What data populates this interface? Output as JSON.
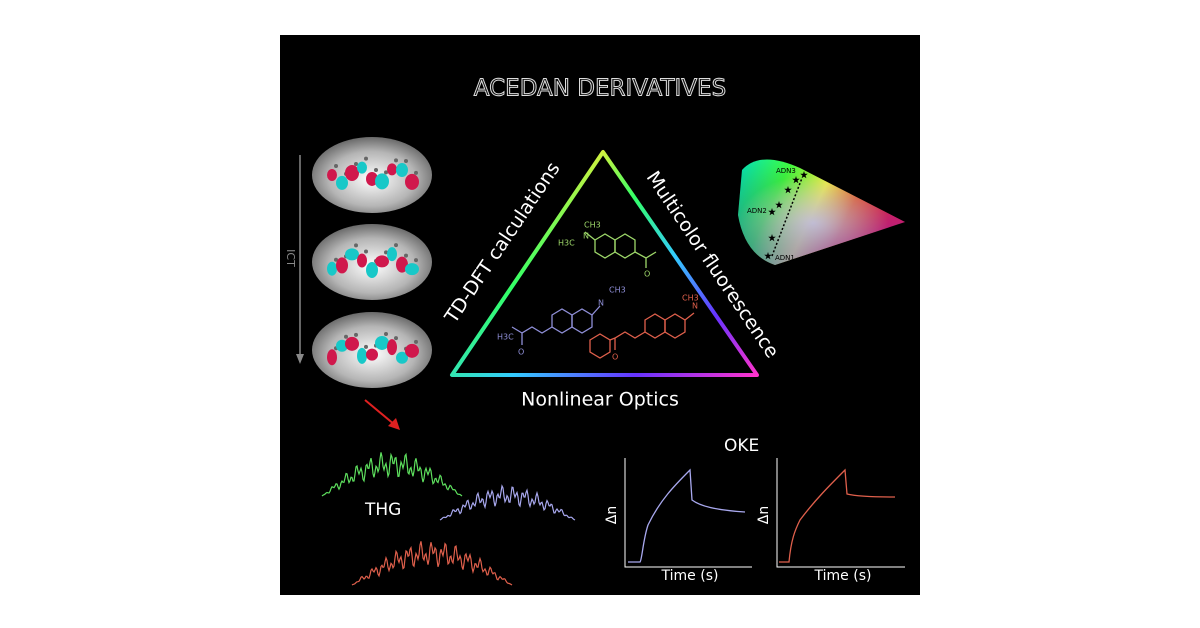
{
  "title": "ACEDAN DERIVATIVES",
  "triangle": {
    "left": "TD-DFT calculations",
    "right": "Multicolor fluorescence",
    "bottom": "Nonlinear Optics"
  },
  "ict_label": "ICT",
  "cie": {
    "labels": [
      "ADN3",
      "ADN2",
      "ADN1"
    ]
  },
  "molecules": [
    {
      "atoms": [
        "CH3",
        "H3C",
        "N",
        "O"
      ]
    },
    {
      "atoms": [
        "CH3",
        "N",
        "H3C",
        "O"
      ]
    },
    {
      "atoms": [
        "N",
        "CH3",
        "O"
      ]
    }
  ],
  "thg": {
    "label": "THG"
  },
  "oke": {
    "label": "OKE",
    "plots": [
      {
        "y_label": "Δn",
        "x_label": "Time (s)"
      },
      {
        "y_label": "Δn",
        "x_label": "Time (s)"
      }
    ]
  }
}
